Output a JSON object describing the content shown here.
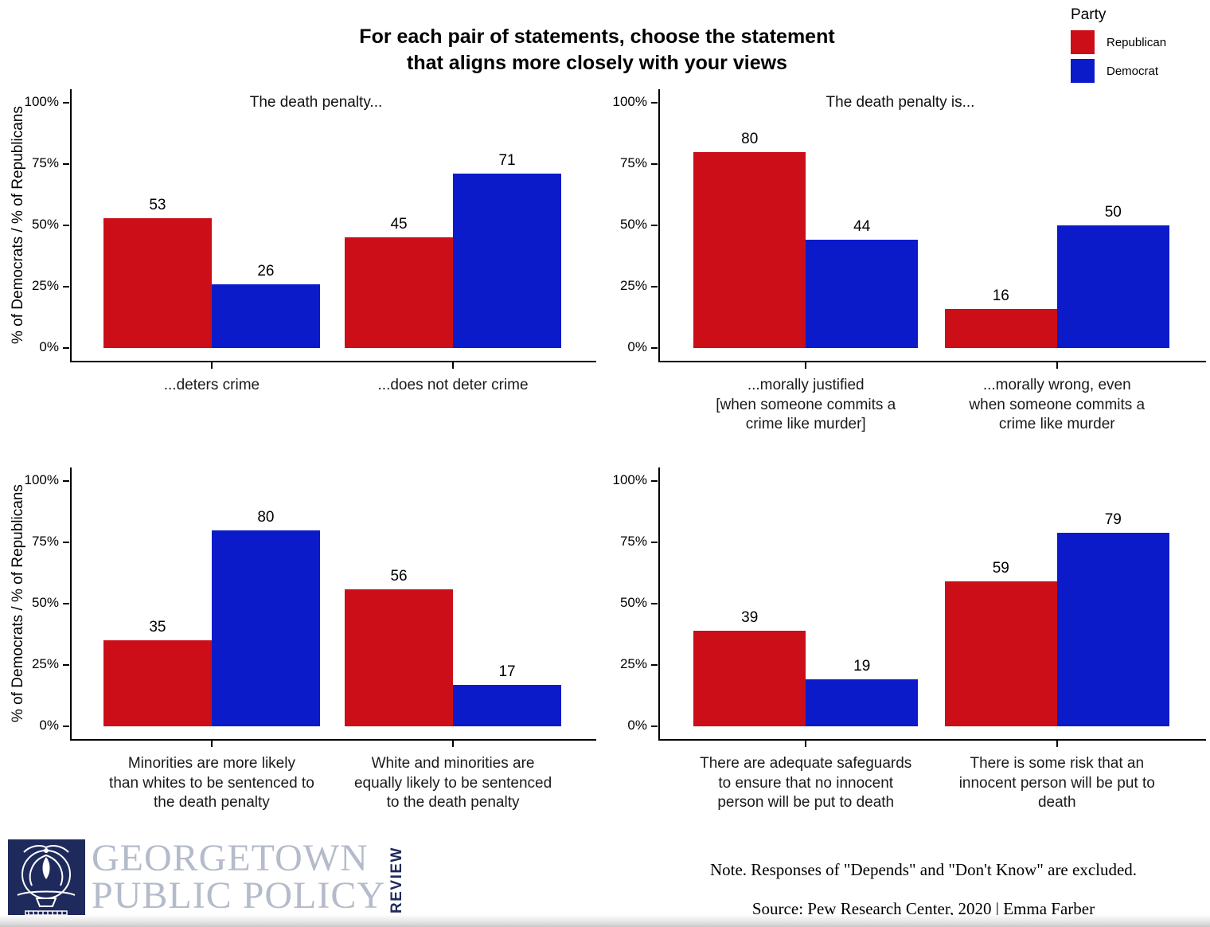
{
  "title": {
    "line1": "For each pair of statements, choose the statement",
    "line2": "that aligns more closely with your views"
  },
  "legend": {
    "title": "Party",
    "items": [
      {
        "label": "Republican",
        "color": "#CB0E17"
      },
      {
        "label": "Democrat",
        "color": "#0C1BC9"
      }
    ]
  },
  "y_axis": {
    "label": "% of Democrats / % of Republicans",
    "ticks": [
      "100%",
      "75%",
      "50%",
      "25%",
      "0%"
    ]
  },
  "chart_data": [
    {
      "type": "bar",
      "subtitle": "The death penalty...",
      "ylabel": "% of Democrats / % of Republicans",
      "ylim": [
        0,
        100
      ],
      "categories": [
        "...deters crime",
        "...does not deter crime"
      ],
      "series": [
        {
          "name": "Republican",
          "values": [
            53,
            45
          ]
        },
        {
          "name": "Democrat",
          "values": [
            26,
            71
          ]
        }
      ]
    },
    {
      "type": "bar",
      "subtitle": "The death penalty is...",
      "ylabel": "",
      "ylim": [
        0,
        100
      ],
      "categories": [
        "...morally justified\n[when someone commits a\ncrime like murder]",
        "...morally wrong, even\nwhen someone commits a\ncrime like murder"
      ],
      "series": [
        {
          "name": "Republican",
          "values": [
            80,
            16
          ]
        },
        {
          "name": "Democrat",
          "values": [
            44,
            50
          ]
        }
      ]
    },
    {
      "type": "bar",
      "subtitle": "",
      "ylabel": "% of Democrats / % of Republicans",
      "ylim": [
        0,
        100
      ],
      "categories": [
        "Minorities are more likely\nthan whites to be sentenced to\nthe death penalty",
        "White and minorities are\nequally likely to be sentenced\nto the death penalty"
      ],
      "series": [
        {
          "name": "Republican",
          "values": [
            35,
            56
          ]
        },
        {
          "name": "Democrat",
          "values": [
            80,
            17
          ]
        }
      ]
    },
    {
      "type": "bar",
      "subtitle": "",
      "ylabel": "",
      "ylim": [
        0,
        100
      ],
      "categories": [
        "There are adequate safeguards\nto ensure that no innocent\nperson will be put to death",
        "There is some risk that an\ninnocent person will be put to\ndeath"
      ],
      "series": [
        {
          "name": "Republican",
          "values": [
            39,
            59
          ]
        },
        {
          "name": "Democrat",
          "values": [
            19,
            79
          ]
        }
      ]
    }
  ],
  "footer": {
    "logo": {
      "line1": "GEORGETOWN",
      "line2": "PUBLIC POLICY",
      "review": "REVIEW"
    },
    "note": "Note. Responses of \"Depends\" and \"Don't Know\" are excluded.",
    "source": "Source: Pew Research Center, 2020 | Emma Farber"
  },
  "colors": {
    "republican": "#CB0E17",
    "democrat": "#0C1BC9",
    "axis": "#000000",
    "logo_navy": "#1f2a5c",
    "logo_gray": "#b4bbca"
  }
}
